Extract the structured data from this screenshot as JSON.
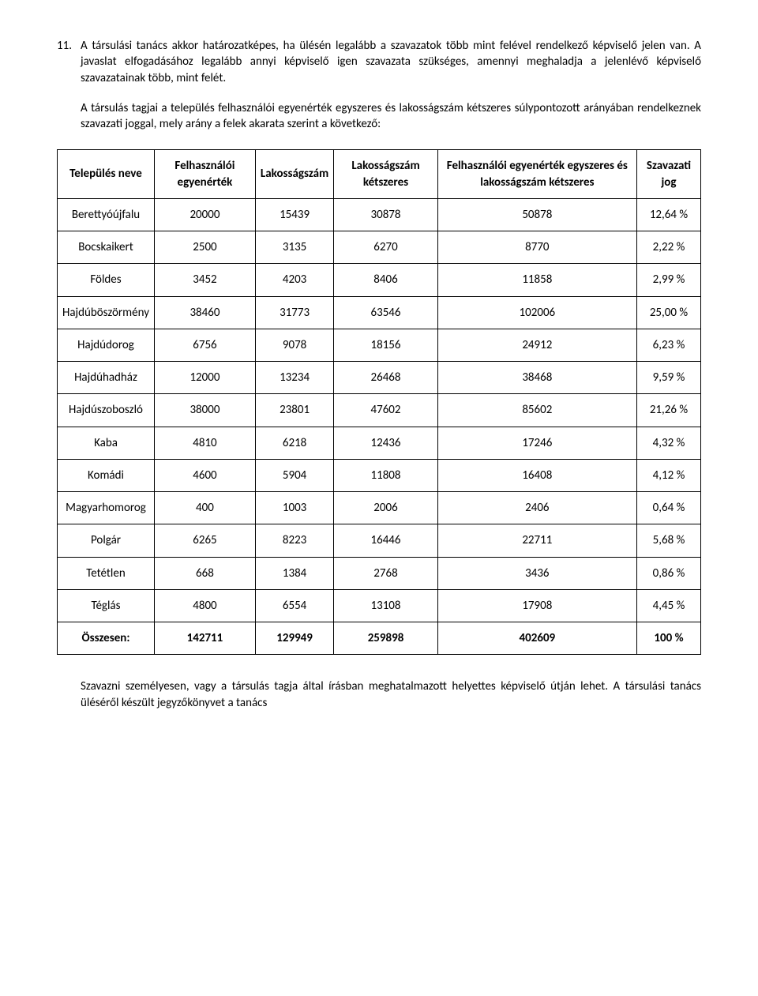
{
  "paragraphs": {
    "p1_num": "11.",
    "p1": "A társulási tanács akkor határozatképes, ha ülésén legalább a szavazatok több mint felével rendelkező képviselő jelen van. A javaslat elfogadásához legalább annyi képviselő igen szavazata szükséges, amennyi meghaladja a jelenlévő képviselő szavazatainak több, mint felét.",
    "p2": "A társulás tagjai a település felhasználói egyenérték egyszeres és lakosságszám kétszeres súlypontozott arányában rendelkeznek szavazati joggal, mely arány a felek akarata szerint a következő:",
    "p3": "Szavazni személyesen, vagy a társulás tagja által írásban meghatalmazott helyettes képviselő útján lehet. A társulási tanács üléséről készült jegyzőkönyvet a tanács"
  },
  "table": {
    "headers": [
      "Település neve",
      "Felhasználói egyenérték",
      "Lakosságszám",
      "Lakosságszám kétszeres",
      "Felhasználói egyenérték egyszeres és lakosságszám kétszeres",
      "Szavazati jog"
    ],
    "rows": [
      [
        "Berettyóújfalu",
        "20000",
        "15439",
        "30878",
        "50878",
        "12,64 %"
      ],
      [
        "Bocskaikert",
        "2500",
        "3135",
        "6270",
        "8770",
        "2,22 %"
      ],
      [
        "Földes",
        "3452",
        "4203",
        "8406",
        "11858",
        "2,99  %"
      ],
      [
        "Hajdúböszörmény",
        "38460",
        "31773",
        "63546",
        "102006",
        "25,00 %"
      ],
      [
        "Hajdúdorog",
        "6756",
        "9078",
        "18156",
        "24912",
        "6,23 %"
      ],
      [
        "Hajdúhadház",
        "12000",
        "13234",
        "26468",
        "38468",
        "9,59 %"
      ],
      [
        "Hajdúszoboszló",
        "38000",
        "23801",
        "47602",
        "85602",
        "21,26 %"
      ],
      [
        "Kaba",
        "4810",
        "6218",
        "12436",
        "17246",
        "4,32 %"
      ],
      [
        "Komádi",
        "4600",
        "5904",
        "11808",
        "16408",
        "4,12 %"
      ],
      [
        "Magyarhomorog",
        "400",
        "1003",
        "2006",
        "2406",
        "0,64 %"
      ],
      [
        "Polgár",
        "6265",
        "8223",
        "16446",
        "22711",
        "5,68 %"
      ],
      [
        "Tetétlen",
        "668",
        "1384",
        "2768",
        "3436",
        "0,86 %"
      ],
      [
        "Téglás",
        "4800",
        "6554",
        "13108",
        "17908",
        "4,45 %"
      ]
    ],
    "total": [
      "Összesen:",
      "142711",
      "129949",
      "259898",
      "402609",
      "100 %"
    ]
  }
}
